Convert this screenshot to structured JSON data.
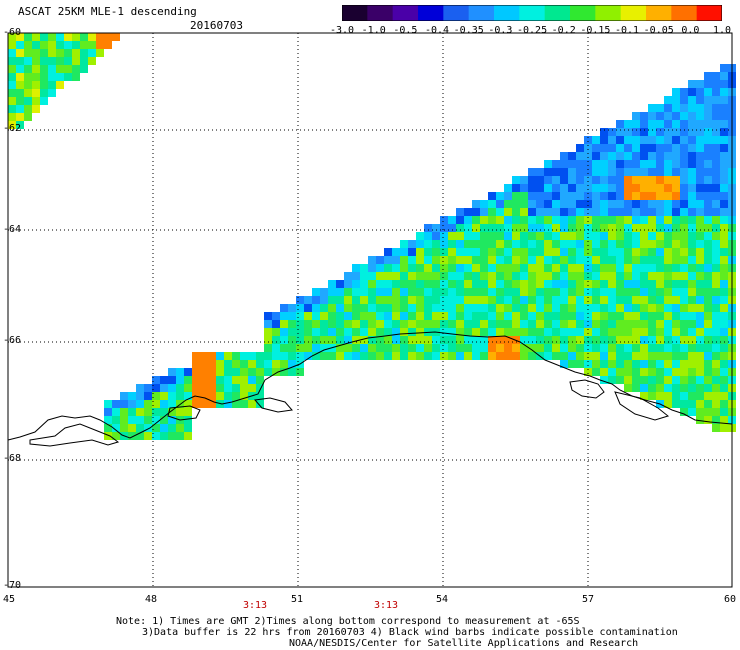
{
  "header": {
    "title": "ASCAT 25KM MLE-1 descending",
    "date": "20160703"
  },
  "colorbar": {
    "labels": [
      "-3.0",
      "-1.0",
      "-0.5",
      "-0.4",
      "-0.35",
      "-0.3",
      "-0.25",
      "-0.2",
      "-0.15",
      "-0.1",
      "-0.05",
      "0.0",
      "1.0"
    ],
    "colors": [
      "#1a0030",
      "#3a0068",
      "#4a00a8",
      "#0000d8",
      "#1a60f0",
      "#2090ff",
      "#00c8ff",
      "#00f0e0",
      "#00e890",
      "#30e830",
      "#90f000",
      "#e8f000",
      "#ffb000",
      "#ff7000",
      "#ff1000"
    ]
  },
  "axes": {
    "lat_labels": [
      "-60",
      "-62",
      "-64",
      "-66",
      "-68",
      "-70"
    ],
    "lon_labels": [
      "45",
      "48",
      "51",
      "54",
      "57",
      "60"
    ],
    "time_labels": [
      "3:13",
      "3:13"
    ]
  },
  "notes": {
    "line1": "Note: 1) Times are GMT 2)Times along bottom correspond to measurement at -65S",
    "line2": "3)Data buffer is 22 hrs from 20160703 4) Black wind barbs indicate possible contamination",
    "line3": "NOAA/NESDIS/Center for Satellite Applications and Research"
  }
}
